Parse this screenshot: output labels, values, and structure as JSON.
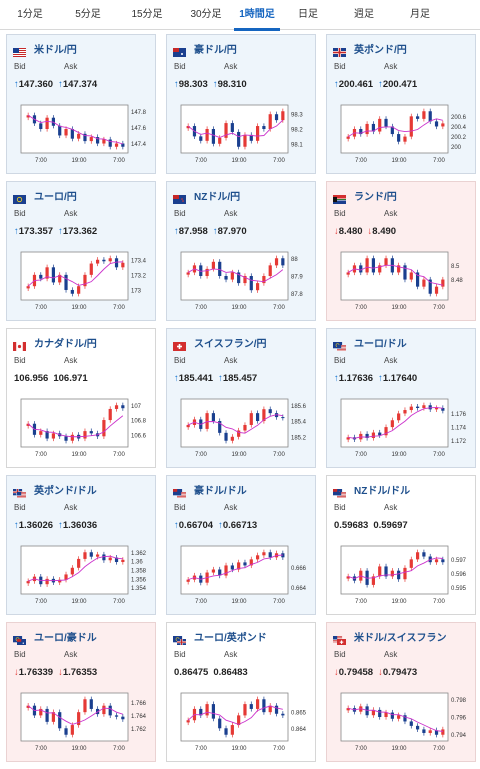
{
  "tabs": [
    {
      "label": "1分足",
      "active": false
    },
    {
      "label": "5分足",
      "active": false
    },
    {
      "label": "15分足",
      "active": false
    },
    {
      "label": "30分足",
      "active": false
    },
    {
      "label": "1時間足",
      "active": true
    },
    {
      "label": "日足",
      "active": false
    },
    {
      "label": "週足",
      "active": false
    },
    {
      "label": "月足",
      "active": false
    }
  ],
  "labels": {
    "bid": "Bid",
    "ask": "Ask"
  },
  "colors": {
    "up_arrow": "#1976d2",
    "down_arrow": "#e53935",
    "bull_candle": "#e53935",
    "bear_candle": "#1a3f8f",
    "moving_average": "#cc33cc",
    "card_up": "#eef5fb",
    "card_down": "#fdeeee"
  },
  "cards": [
    {
      "pair": "米ドル/円",
      "flag": "us",
      "trend": "up",
      "bid": "147.360",
      "ask": "147.374",
      "axis": {
        "y": [
          "147.8",
          "147.6",
          "147.4"
        ],
        "x": [
          "7:00",
          "19:00",
          "7:00"
        ]
      },
      "series": [
        147.75,
        147.65,
        147.58,
        147.72,
        147.62,
        147.5,
        147.58,
        147.46,
        147.52,
        147.43,
        147.48,
        147.4,
        147.45,
        147.36,
        147.4,
        147.36
      ]
    },
    {
      "pair": "豪ドル/円",
      "flag": "au",
      "trend": "up",
      "bid": "98.303",
      "ask": "98.310",
      "axis": {
        "y": [
          "98.3",
          "98.2",
          "98.1"
        ],
        "x": [
          "7:00",
          "19:00",
          "7:00"
        ]
      },
      "series": [
        98.22,
        98.15,
        98.12,
        98.2,
        98.1,
        98.14,
        98.24,
        98.18,
        98.08,
        98.16,
        98.12,
        98.22,
        98.2,
        98.3,
        98.26,
        98.32
      ]
    },
    {
      "pair": "英ポンド/円",
      "flag": "gb",
      "trend": "up",
      "bid": "200.461",
      "ask": "200.471",
      "axis": {
        "y": [
          "200.6",
          "200.4",
          "200.2",
          "200"
        ],
        "x": [
          "7:00",
          "19:00",
          "7:00"
        ]
      },
      "series": [
        200.2,
        200.35,
        200.25,
        200.45,
        200.3,
        200.55,
        200.4,
        200.25,
        200.1,
        200.2,
        200.6,
        200.55,
        200.7,
        200.5,
        200.4,
        200.46
      ]
    },
    {
      "pair": "ユーロ/円",
      "flag": "eu",
      "trend": "up",
      "bid": "173.357",
      "ask": "173.362",
      "axis": {
        "y": [
          "173.4",
          "173.2",
          "173"
        ],
        "x": [
          "7:00",
          "19:00",
          "7:00"
        ]
      },
      "series": [
        173.05,
        173.2,
        173.15,
        173.3,
        173.1,
        173.2,
        173.0,
        172.95,
        173.05,
        173.2,
        173.35,
        173.4,
        173.38,
        173.42,
        173.3,
        173.36
      ]
    },
    {
      "pair": "NZドル/円",
      "flag": "nz",
      "trend": "up",
      "bid": "87.958",
      "ask": "87.970",
      "axis": {
        "y": [
          "88",
          "87.9",
          "87.8"
        ],
        "x": [
          "7:00",
          "19:00",
          "7:00"
        ]
      },
      "series": [
        87.92,
        87.96,
        87.9,
        87.94,
        87.98,
        87.9,
        87.88,
        87.92,
        87.86,
        87.9,
        87.82,
        87.86,
        87.9,
        87.96,
        88.0,
        87.96
      ]
    },
    {
      "pair": "ランド/円",
      "flag": "za",
      "trend": "down",
      "bid": "8.480",
      "ask": "8.490",
      "axis": {
        "y": [
          "8.5",
          "8.48"
        ],
        "x": [
          "7:00",
          "19:00",
          "7:00"
        ]
      },
      "series": [
        8.49,
        8.5,
        8.49,
        8.51,
        8.49,
        8.5,
        8.51,
        8.49,
        8.5,
        8.48,
        8.49,
        8.47,
        8.48,
        8.46,
        8.47,
        8.48
      ]
    },
    {
      "pair": "カナダドル/円",
      "flag": "ca",
      "trend": "flat",
      "bid": "106.956",
      "ask": "106.971",
      "axis": {
        "y": [
          "107",
          "106.8",
          "106.6"
        ],
        "x": [
          "7:00",
          "19:00",
          "7:00"
        ]
      },
      "series": [
        106.75,
        106.6,
        106.65,
        106.55,
        106.62,
        106.58,
        106.52,
        106.6,
        106.55,
        106.65,
        106.62,
        106.58,
        106.8,
        106.95,
        107.0,
        106.96
      ]
    },
    {
      "pair": "スイスフラン/円",
      "flag": "ch",
      "trend": "up",
      "bid": "185.441",
      "ask": "185.457",
      "axis": {
        "y": [
          "185.6",
          "185.4",
          "185.2"
        ],
        "x": [
          "7:00",
          "19:00",
          "7:00"
        ]
      },
      "series": [
        185.35,
        185.42,
        185.3,
        185.5,
        185.4,
        185.25,
        185.15,
        185.2,
        185.28,
        185.35,
        185.5,
        185.4,
        185.55,
        185.5,
        185.45,
        185.44
      ]
    },
    {
      "pair": "ユーロ/ドル",
      "flag": "eu-us",
      "trend": "up",
      "bid": "1.17636",
      "ask": "1.17640",
      "axis": {
        "y": [
          "1.176",
          "1.174",
          "1.172"
        ],
        "x": [
          "7:00",
          "19:00",
          "7:00"
        ]
      },
      "series": [
        1.1725,
        1.1722,
        1.173,
        1.1724,
        1.1732,
        1.1728,
        1.174,
        1.175,
        1.176,
        1.1765,
        1.177,
        1.1768,
        1.1772,
        1.1766,
        1.1768,
        1.1764
      ]
    },
    {
      "pair": "英ポンド/ドル",
      "flag": "gb-us",
      "trend": "up",
      "bid": "1.36026",
      "ask": "1.36036",
      "axis": {
        "y": [
          "1.362",
          "1.36",
          "1.358",
          "1.356",
          "1.354"
        ],
        "x": [
          "7:00",
          "19:00",
          "7:00"
        ]
      },
      "series": [
        1.3555,
        1.3565,
        1.3548,
        1.356,
        1.3552,
        1.3558,
        1.357,
        1.3585,
        1.3605,
        1.362,
        1.361,
        1.3615,
        1.3602,
        1.3608,
        1.3598,
        1.3603
      ]
    },
    {
      "pair": "豪ドル/ドル",
      "flag": "au-us",
      "trend": "up",
      "bid": "0.66704",
      "ask": "0.66713",
      "axis": {
        "y": [
          "0.666",
          "0.664"
        ],
        "x": [
          "7:00",
          "19:00",
          "7:00"
        ]
      },
      "series": [
        0.6648,
        0.6652,
        0.6645,
        0.6655,
        0.6658,
        0.6652,
        0.6662,
        0.6658,
        0.6665,
        0.6662,
        0.6668,
        0.6672,
        0.6675,
        0.667,
        0.6674,
        0.667
      ]
    },
    {
      "pair": "NZドル/ドル",
      "flag": "nz-us",
      "trend": "flat",
      "bid": "0.59683",
      "ask": "0.59697",
      "axis": {
        "y": [
          "0.597",
          "0.596",
          "0.595"
        ],
        "x": [
          "7:00",
          "19:00",
          "7:00"
        ]
      },
      "series": [
        0.5958,
        0.5955,
        0.5962,
        0.5952,
        0.5958,
        0.5965,
        0.5958,
        0.5962,
        0.5956,
        0.5964,
        0.597,
        0.5975,
        0.5972,
        0.5968,
        0.597,
        0.5968
      ]
    },
    {
      "pair": "ユーロ/豪ドル",
      "flag": "eu-au",
      "trend": "down",
      "bid": "1.76339",
      "ask": "1.76353",
      "axis": {
        "y": [
          "1.766",
          "1.764",
          "1.762"
        ],
        "x": [
          "7:00",
          "19:00",
          "7:00"
        ]
      },
      "series": [
        1.7655,
        1.764,
        1.765,
        1.763,
        1.7645,
        1.762,
        1.761,
        1.7625,
        1.7645,
        1.7665,
        1.765,
        1.7642,
        1.7655,
        1.764,
        1.7638,
        1.7634
      ]
    },
    {
      "pair": "ユーロ/英ポンド",
      "flag": "eu-gb",
      "trend": "flat",
      "bid": "0.86475",
      "ask": "0.86483",
      "axis": {
        "y": [
          "0.865",
          "0.864"
        ],
        "x": [
          "7:00",
          "19:00",
          "7:00"
        ]
      },
      "series": [
        0.8645,
        0.8652,
        0.8648,
        0.8655,
        0.8646,
        0.864,
        0.8636,
        0.8642,
        0.8648,
        0.8655,
        0.8652,
        0.8658,
        0.865,
        0.8654,
        0.8649,
        0.8648
      ]
    },
    {
      "pair": "米ドル/スイスフラン",
      "flag": "us-ch",
      "trend": "down",
      "bid": "0.79458",
      "ask": "0.79473",
      "axis": {
        "y": [
          "0.798",
          "0.796",
          "0.794"
        ],
        "x": [
          "7:00",
          "19:00",
          "7:00"
        ]
      },
      "series": [
        0.797,
        0.7966,
        0.7972,
        0.7962,
        0.7968,
        0.796,
        0.7965,
        0.7958,
        0.7962,
        0.7955,
        0.795,
        0.7946,
        0.7942,
        0.7945,
        0.794,
        0.7946
      ]
    }
  ]
}
